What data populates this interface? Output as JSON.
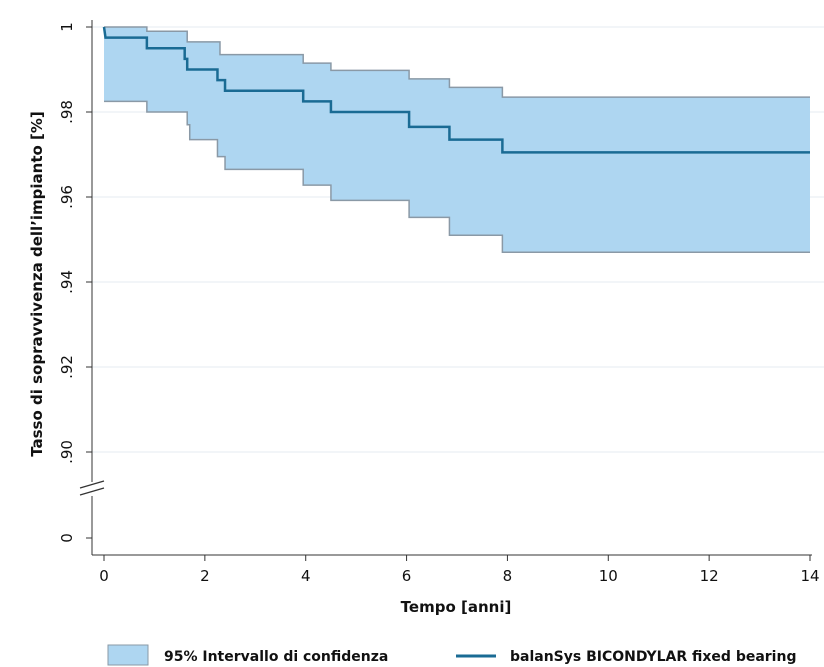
{
  "chart_data": {
    "type": "line",
    "xlabel": "Tempo [anni]",
    "ylabel": "Tasso di sopravvivenza dell’impianto [%]",
    "xlim": [
      0,
      14
    ],
    "ylim_broken": {
      "lower_tick": 0,
      "upper_range": [
        0.89,
        1.0
      ]
    },
    "x_ticks": [
      0,
      2,
      4,
      6,
      8,
      10,
      12,
      14
    ],
    "x_tick_labels": [
      "0",
      "2",
      "4",
      "6",
      "8",
      "10",
      "12",
      "14"
    ],
    "y_ticks": [
      1.0,
      0.98,
      0.96,
      0.94,
      0.92,
      0.9
    ],
    "y_tick_labels": [
      "1",
      ".98",
      ".96",
      ".94",
      ".92",
      ".90"
    ],
    "y_lower_tick_label": "0",
    "grid": "horizontal",
    "legend_position": "bottom",
    "series": [
      {
        "name": "balanSys BICONDYLAR fixed bearing",
        "color": "#1a6b94",
        "step": true,
        "points": [
          [
            0,
            1.0
          ],
          [
            0.03,
            0.9975
          ],
          [
            0.85,
            0.9975
          ],
          [
            0.85,
            0.995
          ],
          [
            1.6,
            0.995
          ],
          [
            1.6,
            0.9925
          ],
          [
            1.65,
            0.9925
          ],
          [
            1.65,
            0.99
          ],
          [
            2.25,
            0.99
          ],
          [
            2.25,
            0.9875
          ],
          [
            2.4,
            0.9875
          ],
          [
            2.4,
            0.985
          ],
          [
            3.95,
            0.985
          ],
          [
            3.95,
            0.9825
          ],
          [
            4.5,
            0.9825
          ],
          [
            4.5,
            0.98
          ],
          [
            6.05,
            0.98
          ],
          [
            6.05,
            0.9765
          ],
          [
            6.85,
            0.9765
          ],
          [
            6.85,
            0.9735
          ],
          [
            7.9,
            0.9735
          ],
          [
            7.9,
            0.9705
          ],
          [
            14,
            0.9705
          ]
        ]
      }
    ],
    "confidence_band": {
      "name": "95% Intervallo di confidenza",
      "fill": "#aed6f1",
      "edge": "#8a99a6",
      "upper": [
        [
          0,
          1.0
        ],
        [
          0.85,
          1.0
        ],
        [
          0.85,
          0.999
        ],
        [
          1.65,
          0.999
        ],
        [
          1.65,
          0.9965
        ],
        [
          2.3,
          0.9965
        ],
        [
          2.3,
          0.9935
        ],
        [
          3.95,
          0.9935
        ],
        [
          3.95,
          0.9915
        ],
        [
          4.5,
          0.9915
        ],
        [
          4.5,
          0.9898
        ],
        [
          6.05,
          0.9898
        ],
        [
          6.05,
          0.9878
        ],
        [
          6.85,
          0.9878
        ],
        [
          6.85,
          0.9858
        ],
        [
          7.9,
          0.9858
        ],
        [
          7.9,
          0.9835
        ],
        [
          14,
          0.9835
        ]
      ],
      "lower": [
        [
          0,
          0.9825
        ],
        [
          0.85,
          0.9825
        ],
        [
          0.85,
          0.98
        ],
        [
          1.65,
          0.98
        ],
        [
          1.65,
          0.977
        ],
        [
          1.7,
          0.977
        ],
        [
          1.7,
          0.9735
        ],
        [
          2.25,
          0.9735
        ],
        [
          2.25,
          0.9695
        ],
        [
          2.4,
          0.9695
        ],
        [
          2.4,
          0.9665
        ],
        [
          3.95,
          0.9665
        ],
        [
          3.95,
          0.9628
        ],
        [
          4.5,
          0.9628
        ],
        [
          4.5,
          0.9592
        ],
        [
          6.05,
          0.9592
        ],
        [
          6.05,
          0.9552
        ],
        [
          6.85,
          0.9552
        ],
        [
          6.85,
          0.951
        ],
        [
          7.9,
          0.951
        ],
        [
          7.9,
          0.947
        ],
        [
          14,
          0.947
        ]
      ]
    }
  }
}
